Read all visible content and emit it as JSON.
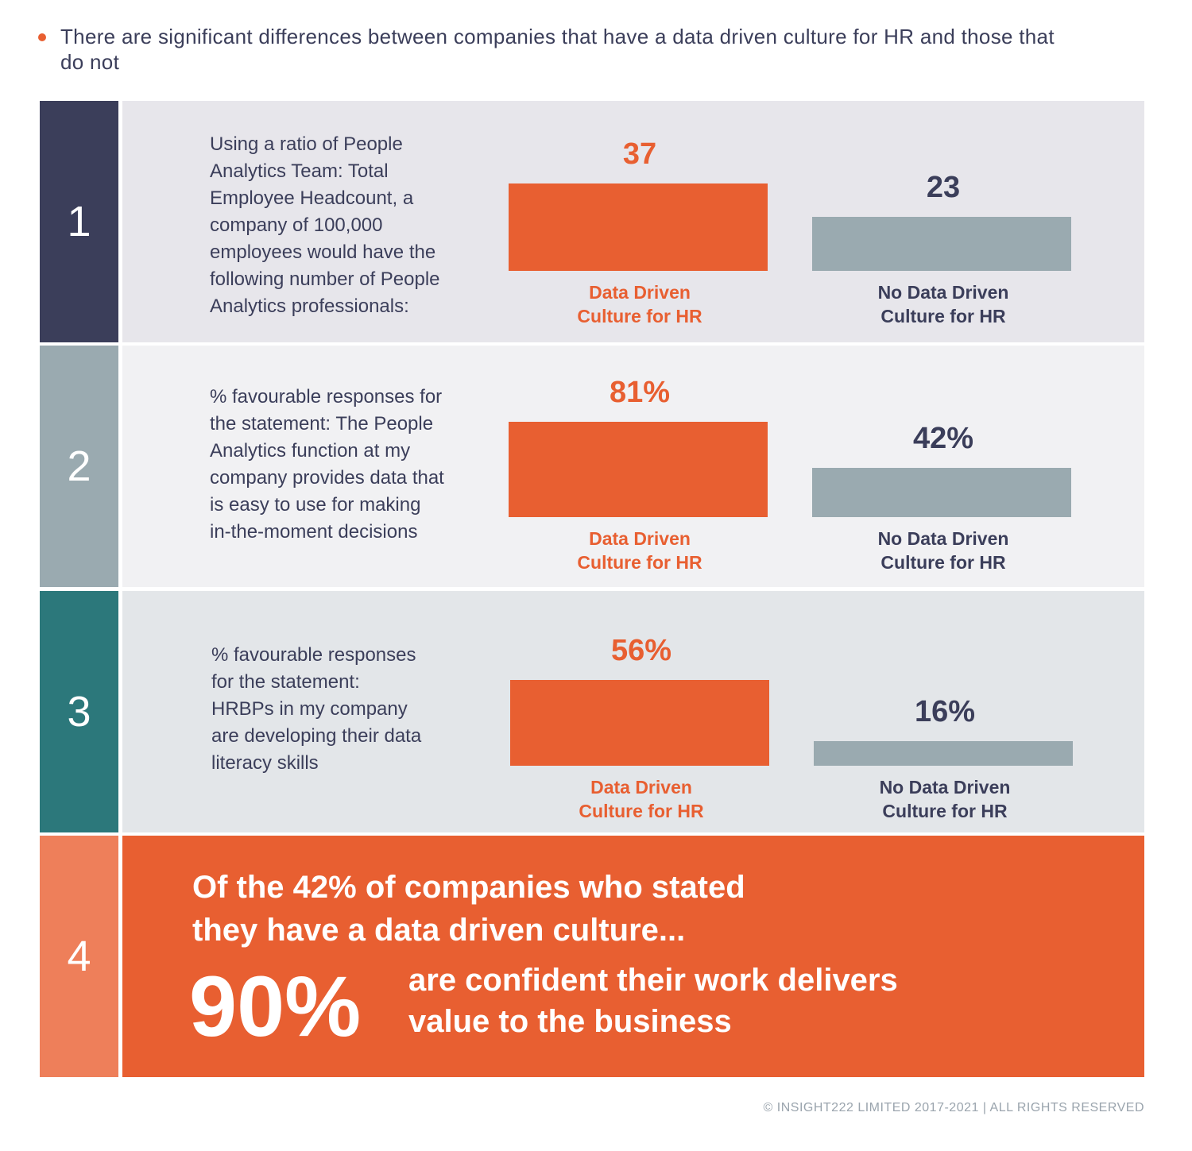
{
  "intro": "There are significant differences between companies that have a data driven culture for HR and those that do not",
  "colors": {
    "orange": "#e85f31",
    "navy": "#3b3e5a",
    "grey_bar": "#9aaab0",
    "teal": "#2c787b",
    "light_orange": "#ee7f5a"
  },
  "chart_data": [
    {
      "type": "bar",
      "number": "1",
      "description": [
        "Using a ratio of People",
        "Analytics Team: Total",
        "Employee Headcount, a",
        "company of 100,000",
        "employees would have the",
        "following number of People",
        "Analytics professionals:"
      ],
      "categories": [
        "Data Driven Culture for HR",
        "No Data Driven Culture for HR"
      ],
      "values": [
        37,
        23
      ],
      "value_labels": [
        "37",
        "23"
      ],
      "ylim": [
        0,
        37
      ]
    },
    {
      "type": "bar",
      "number": "2",
      "description": [
        "% favourable responses for",
        "the statement: The People",
        "Analytics function at my",
        "company provides data that",
        "is easy to use for making",
        "in-the-moment decisions"
      ],
      "categories": [
        "Data Driven Culture for HR",
        "No Data Driven Culture for HR"
      ],
      "values": [
        81,
        42
      ],
      "value_labels": [
        "81%",
        "42%"
      ],
      "ylim": [
        0,
        81
      ]
    },
    {
      "type": "bar",
      "number": "3",
      "description": [
        "% favourable responses",
        "for the statement:",
        "HRBPs in my company",
        "are developing their data",
        "literacy skills"
      ],
      "categories": [
        "Data Driven Culture for HR",
        "No Data Driven Culture for HR"
      ],
      "values": [
        56,
        16
      ],
      "value_labels": [
        "56%",
        "16%"
      ],
      "ylim": [
        0,
        56
      ]
    }
  ],
  "stat4": {
    "number": "4",
    "lead": [
      "Of the 42% of companies who stated",
      "they have a data driven culture..."
    ],
    "big": "90%",
    "rest": [
      "are confident their work delivers",
      "value to the business"
    ]
  },
  "footer": "© INSIGHT222 LIMITED 2017-2021 | ALL RIGHTS RESERVED"
}
